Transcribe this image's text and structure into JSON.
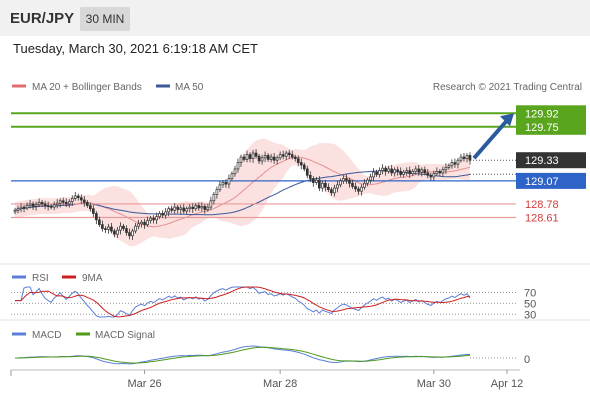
{
  "header": {
    "pair": "EUR/JPY",
    "timeframe": "30 MIN",
    "timestamp": "Tuesday, March 30, 2021 6:19:18 AM CET",
    "copyright": "Research © 2021 Trading Central"
  },
  "colors": {
    "background": "#ffffff",
    "bullish": "#ffffff",
    "bearish": "#333333",
    "ma20": "#e06b6b",
    "bollinger_fill": "#fbd9d9",
    "ma50": "#3b5998",
    "resistance": "#5aa51e",
    "support": "#e99a9a",
    "pivot": "#2e63c8",
    "rsi": "#5b7fd6",
    "rsi_ma": "#cc1f1f",
    "macd": "#5b7fd6",
    "macd_signal": "#4e9a1a",
    "arrow": "#2b5a9e"
  },
  "chart_data": [
    {
      "type": "candlestick",
      "name": "price",
      "legend": [
        "MA 20 + Bollinger Bands",
        "MA 50"
      ],
      "x_tick_labels": [
        "Mar 26",
        "Mar 28",
        "Mar 30",
        "Apr 12"
      ],
      "x_tick_index": [
        43,
        88,
        139,
        165
      ],
      "ylim": [
        128.05,
        130.15
      ],
      "current_price": 129.33,
      "levels": [
        {
          "label": "129.92",
          "value": 129.92,
          "kind": "resistance"
        },
        {
          "label": "129.75",
          "value": 129.75,
          "kind": "resistance"
        },
        {
          "label": "129.33",
          "value": 129.33,
          "kind": "last"
        },
        {
          "label": "129.07",
          "value": 129.07,
          "kind": "pivot"
        },
        {
          "label": "128.78",
          "value": 128.78,
          "kind": "support"
        },
        {
          "label": "128.61",
          "value": 128.61,
          "kind": "support"
        }
      ],
      "close": [
        128.7,
        128.72,
        128.74,
        128.73,
        128.76,
        128.78,
        128.75,
        128.77,
        128.8,
        128.78,
        128.76,
        128.75,
        128.74,
        128.77,
        128.79,
        128.82,
        128.8,
        128.78,
        128.81,
        128.85,
        128.88,
        128.86,
        128.83,
        128.8,
        128.76,
        128.72,
        128.66,
        128.58,
        128.52,
        128.47,
        128.46,
        128.49,
        128.44,
        128.4,
        128.45,
        128.5,
        128.47,
        128.42,
        128.38,
        128.44,
        128.5,
        128.53,
        128.55,
        128.52,
        128.57,
        128.6,
        128.58,
        128.62,
        128.66,
        128.64,
        128.68,
        128.72,
        128.7,
        128.74,
        128.71,
        128.73,
        128.69,
        128.72,
        128.74,
        128.72,
        128.76,
        128.73,
        128.75,
        128.71,
        128.74,
        128.82,
        128.9,
        128.96,
        129.02,
        129.05,
        129.03,
        129.1,
        129.16,
        129.22,
        129.3,
        129.37,
        129.34,
        129.4,
        129.35,
        129.42,
        129.38,
        129.32,
        129.36,
        129.39,
        129.34,
        129.37,
        129.33,
        129.36,
        129.4,
        129.38,
        129.42,
        129.4,
        129.37,
        129.35,
        129.3,
        129.27,
        129.22,
        129.14,
        129.1,
        129.05,
        129.08,
        128.98,
        129.04,
        128.99,
        128.96,
        128.92,
        128.98,
        129.02,
        129.07,
        129.1,
        129.08,
        129.04,
        129.0,
        128.97,
        128.94,
        128.99,
        129.04,
        129.08,
        129.12,
        129.18,
        129.15,
        129.2,
        129.23,
        129.19,
        129.22,
        129.17,
        129.21,
        129.19,
        129.15,
        129.18,
        129.2,
        129.16,
        129.19,
        129.22,
        129.18,
        129.21,
        129.17,
        129.14,
        129.12,
        129.16,
        129.19,
        129.17,
        129.21,
        129.24,
        129.26,
        129.3,
        129.28,
        129.33,
        129.37,
        129.35,
        129.39,
        129.33
      ]
    },
    {
      "type": "line",
      "name": "RSI",
      "legend": [
        "RSI",
        "9MA"
      ],
      "levels": [
        70,
        50,
        30
      ],
      "ylim": [
        25,
        80
      ]
    },
    {
      "type": "line",
      "name": "MACD",
      "legend": [
        "MACD",
        "MACD Signal"
      ],
      "levels": [
        0
      ]
    }
  ]
}
